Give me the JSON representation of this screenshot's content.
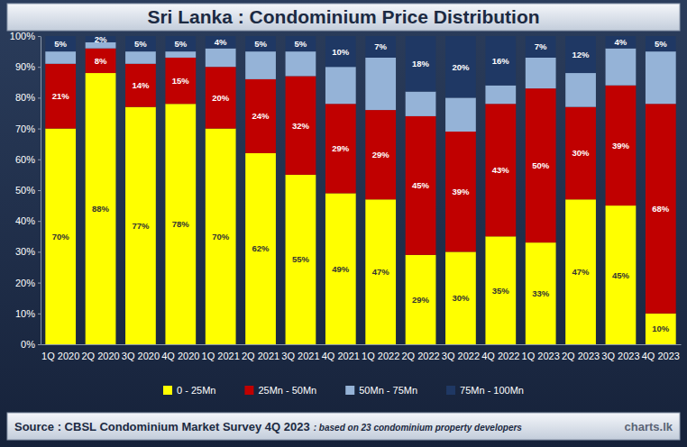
{
  "chart_data": {
    "type": "bar",
    "title": "Sri Lanka : Condominium Price Distribution",
    "annotations": [
      "Source : CBSL Condominium Market Survey 4Q 2023",
      ": based on 23 condominium property developers",
      "charts.lk"
    ],
    "categories": [
      "1Q 2020",
      "2Q 2020",
      "3Q 2020",
      "4Q 2020",
      "1Q 2021",
      "2Q 2021",
      "3Q 2021",
      "4Q 2021",
      "1Q 2022",
      "2Q 2022",
      "3Q 2022",
      "4Q 2022",
      "1Q 2023",
      "2Q 2023",
      "3Q 2023",
      "4Q 2023"
    ],
    "series": [
      {
        "name": "0 - 25Mn",
        "color": "#ffff00",
        "data_labels": true,
        "values": [
          70,
          88,
          77,
          78,
          70,
          62,
          55,
          49,
          47,
          29,
          30,
          35,
          33,
          47,
          45,
          10
        ],
        "value_labels": [
          "70%",
          "88%",
          "77%",
          "78%",
          "70%",
          "62%",
          "55%",
          "49%",
          "47%",
          "29%",
          "30%",
          "35%",
          "33%",
          "47%",
          "45%",
          "10%"
        ]
      },
      {
        "name": "25Mn - 50Mn",
        "color": "#c00000",
        "data_labels": true,
        "values": [
          21,
          8,
          14,
          15,
          20,
          24,
          32,
          29,
          29,
          45,
          39,
          43,
          50,
          30,
          39,
          68
        ],
        "value_labels": [
          "21%",
          "8%",
          "14%",
          "15%",
          "20%",
          "24%",
          "32%",
          "29%",
          "29%",
          "45%",
          "39%",
          "43%",
          "50%",
          "30%",
          "39%",
          "68%"
        ]
      },
      {
        "name": "50Mn - 75Mn",
        "color": "#95b3d7",
        "data_labels": false,
        "values": [
          4,
          2,
          4,
          2,
          6,
          9,
          8,
          12,
          17,
          8,
          11,
          6,
          10,
          11,
          12,
          17
        ]
      },
      {
        "name": "75Mn - 100Mn",
        "color": "#1f3864",
        "data_labels": true,
        "values": [
          5,
          2,
          5,
          5,
          4,
          5,
          5,
          10,
          7,
          18,
          20,
          16,
          7,
          12,
          4,
          5
        ],
        "value_labels": [
          "5%",
          "2%",
          "5%",
          "5%",
          "4%",
          "5%",
          "5%",
          "10%",
          "7%",
          "18%",
          "20%",
          "16%",
          "7%",
          "12%",
          "4%",
          "5%"
        ]
      }
    ],
    "stacked": true,
    "legend": "bottom",
    "grid": false,
    "ylim": [
      0,
      100
    ],
    "yticks": [
      {
        "value": 0,
        "label": "0%"
      },
      {
        "value": 10,
        "label": "10%"
      },
      {
        "value": 20,
        "label": "20%"
      },
      {
        "value": 30,
        "label": "30%"
      },
      {
        "value": 40,
        "label": "40%"
      },
      {
        "value": 50,
        "label": "50%"
      },
      {
        "value": 60,
        "label": "60%"
      },
      {
        "value": 70,
        "label": "70%"
      },
      {
        "value": 80,
        "label": "80%"
      },
      {
        "value": 90,
        "label": "90%"
      },
      {
        "value": 100,
        "label": "100%"
      }
    ]
  }
}
